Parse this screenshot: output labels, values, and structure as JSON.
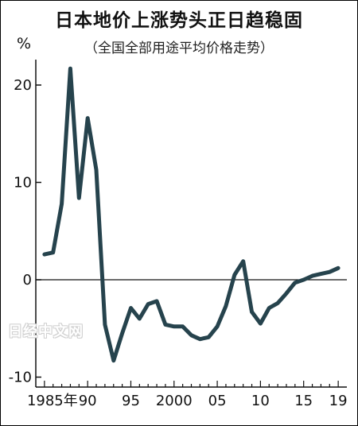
{
  "chart_data": {
    "type": "line",
    "title": "日本地价上涨势头正日趋稳固",
    "subtitle": "（全国全部用途平均价格走势）",
    "ylabel": "%",
    "xlabel": "",
    "x_tick_labels": [
      "1985年",
      "90",
      "95",
      "2000",
      "05",
      "10",
      "15",
      "19"
    ],
    "x_tick_years": [
      1985,
      1990,
      1995,
      2000,
      2005,
      2010,
      2015,
      2019
    ],
    "y_ticks": [
      20,
      10,
      0,
      -10
    ],
    "xlim": [
      1984,
      2020
    ],
    "ylim": [
      -11,
      24
    ],
    "grid": false,
    "series": [
      {
        "color": "#26434d",
        "x": [
          1985,
          1986,
          1987,
          1988,
          1989,
          1990,
          1991,
          1992,
          1993,
          1994,
          1995,
          1996,
          1997,
          1998,
          1999,
          2000,
          2001,
          2002,
          2003,
          2004,
          2005,
          2006,
          2007,
          2008,
          2009,
          2010,
          2011,
          2012,
          2013,
          2014,
          2015,
          2016,
          2017,
          2018,
          2019
        ],
        "values": [
          2.6,
          2.8,
          7.8,
          21.7,
          8.4,
          16.6,
          11.3,
          -4.6,
          -8.3,
          -5.5,
          -2.9,
          -4.0,
          -2.5,
          -2.2,
          -4.6,
          -4.8,
          -4.8,
          -5.7,
          -6.1,
          -5.9,
          -4.8,
          -2.7,
          0.5,
          1.9,
          -3.3,
          -4.5,
          -2.9,
          -2.4,
          -1.4,
          -0.3,
          0.0,
          0.4,
          0.6,
          0.8,
          1.2
        ]
      }
    ]
  },
  "watermark": "日经中文网"
}
